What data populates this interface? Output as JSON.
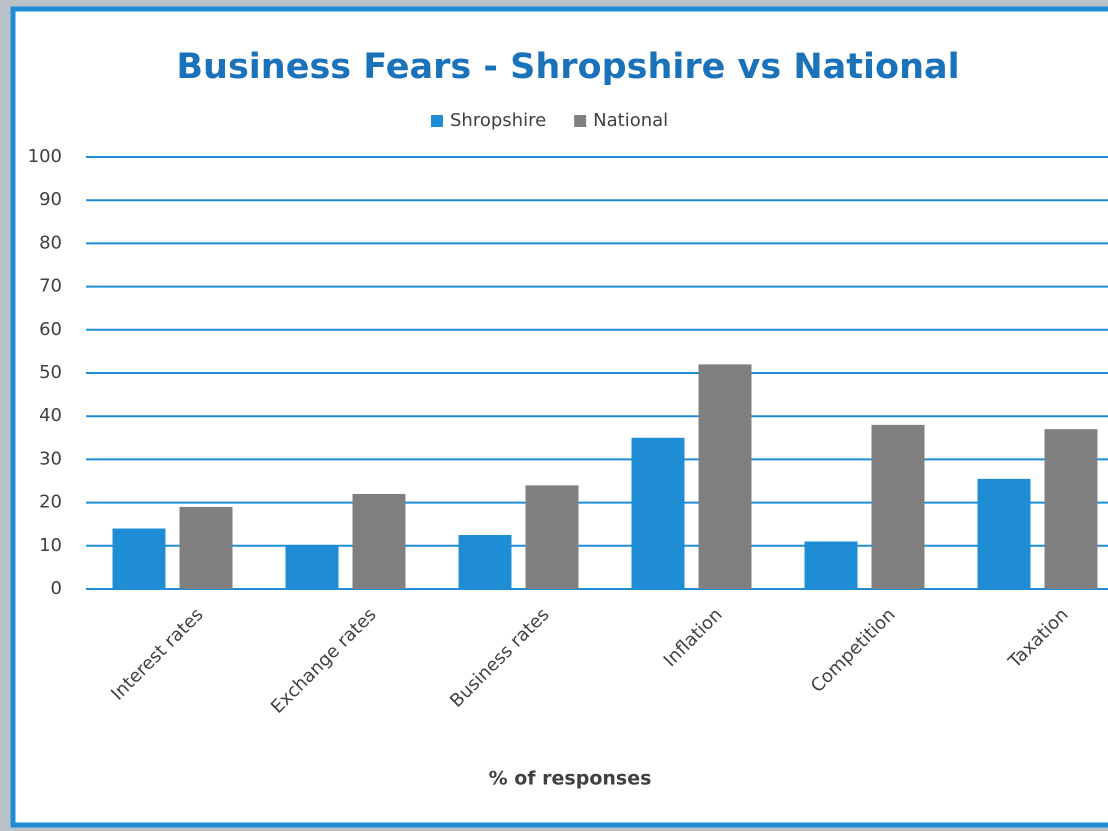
{
  "chart_data": {
    "type": "bar",
    "title": "Business Fears - Shropshire vs National",
    "x_label": "% of responses",
    "categories": [
      "Interest rates",
      "Exchange rates",
      "Business rates",
      "Inflation",
      "Competition",
      "Taxation"
    ],
    "series": [
      {
        "name": "Shropshire",
        "color": "#1f8dd6",
        "values": [
          14,
          10,
          12.5,
          35,
          11,
          25.5
        ]
      },
      {
        "name": "National",
        "color": "#808080",
        "values": [
          19,
          22,
          24,
          52,
          38,
          37
        ]
      }
    ],
    "ylim": [
      0,
      100
    ],
    "yticks": [
      0,
      10,
      20,
      30,
      40,
      50,
      60,
      70,
      80,
      90,
      100
    ],
    "grid": true,
    "grid_color": "#1f8dd6",
    "legend": "top"
  }
}
